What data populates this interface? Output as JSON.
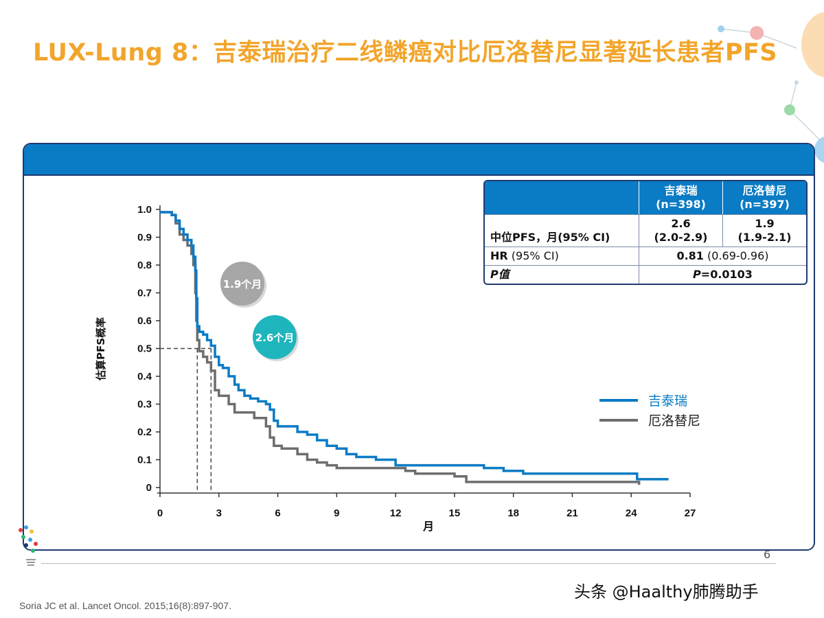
{
  "title": "LUX-Lung 8：吉泰瑞治疗二线鳞癌对比厄洛替尼显著延长患者PFS",
  "table": {
    "headers": [
      "",
      "吉泰瑞\n(n=398)",
      "厄洛替尼\n(n=397)"
    ],
    "rows": [
      {
        "label": "中位PFS，月(95% CI)",
        "col1": "2.6\n(2.0-2.9)",
        "col2": "1.9\n(1.9-2.1)"
      },
      {
        "label_bold": "HR",
        "label_rest": " (95% CI)",
        "merged_bold": "0.81",
        "merged_rest": " (0.69-0.96)"
      },
      {
        "label_italic": "P值",
        "merged_italic": "P",
        "merged_rest": "=0.0103"
      }
    ]
  },
  "chart_data": {
    "type": "line",
    "title": "",
    "xlabel": "月",
    "ylabel": "估算PFS概率",
    "xlim": [
      0,
      27
    ],
    "ylim": [
      0,
      1.0
    ],
    "xticks": [
      0,
      3,
      6,
      9,
      12,
      15,
      18,
      21,
      24,
      27
    ],
    "yticks": [
      "0",
      "0.1",
      "0.2",
      "0.3",
      "0.4",
      "0.5",
      "0.6",
      "0.7",
      "0.8",
      "0.9",
      "1.0"
    ],
    "legend_position": "right-middle",
    "median_line_y": 0.5,
    "series": [
      {
        "name": "吉泰瑞",
        "color": "#0a7bc5",
        "median": 2.6,
        "median_label": "2.6个月",
        "badge_color": "#1fb5bd",
        "points": [
          [
            0,
            0.99
          ],
          [
            0.4,
            0.99
          ],
          [
            0.6,
            0.98
          ],
          [
            0.8,
            0.96
          ],
          [
            1.0,
            0.93
          ],
          [
            1.2,
            0.91
          ],
          [
            1.4,
            0.89
          ],
          [
            1.6,
            0.87
          ],
          [
            1.7,
            0.83
          ],
          [
            1.8,
            0.78
          ],
          [
            1.85,
            0.68
          ],
          [
            1.9,
            0.58
          ],
          [
            2.0,
            0.56
          ],
          [
            2.2,
            0.55
          ],
          [
            2.4,
            0.53
          ],
          [
            2.6,
            0.51
          ],
          [
            2.8,
            0.47
          ],
          [
            3.0,
            0.44
          ],
          [
            3.2,
            0.43
          ],
          [
            3.5,
            0.4
          ],
          [
            3.8,
            0.37
          ],
          [
            4.0,
            0.35
          ],
          [
            4.3,
            0.33
          ],
          [
            4.6,
            0.32
          ],
          [
            5.0,
            0.31
          ],
          [
            5.4,
            0.3
          ],
          [
            5.6,
            0.28
          ],
          [
            5.8,
            0.24
          ],
          [
            6.0,
            0.22
          ],
          [
            6.5,
            0.22
          ],
          [
            7.0,
            0.2
          ],
          [
            7.5,
            0.19
          ],
          [
            8.0,
            0.17
          ],
          [
            8.5,
            0.15
          ],
          [
            9.0,
            0.14
          ],
          [
            9.5,
            0.12
          ],
          [
            10.0,
            0.11
          ],
          [
            11.0,
            0.1
          ],
          [
            12.0,
            0.08
          ],
          [
            13.0,
            0.08
          ],
          [
            15.0,
            0.08
          ],
          [
            16.5,
            0.07
          ],
          [
            17.5,
            0.06
          ],
          [
            18.5,
            0.05
          ],
          [
            20.0,
            0.05
          ],
          [
            22.0,
            0.05
          ],
          [
            24.2,
            0.05
          ],
          [
            24.3,
            0.03
          ],
          [
            25.0,
            0.03
          ],
          [
            25.9,
            0.03
          ]
        ]
      },
      {
        "name": "厄洛替尼",
        "color": "#6d6d6d",
        "median": 1.9,
        "median_label": "1.9个月",
        "badge_color": "#a6a6a6",
        "points": [
          [
            0,
            0.99
          ],
          [
            0.4,
            0.99
          ],
          [
            0.6,
            0.98
          ],
          [
            0.8,
            0.95
          ],
          [
            1.0,
            0.91
          ],
          [
            1.2,
            0.89
          ],
          [
            1.4,
            0.87
          ],
          [
            1.6,
            0.84
          ],
          [
            1.7,
            0.8
          ],
          [
            1.8,
            0.7
          ],
          [
            1.85,
            0.6
          ],
          [
            1.9,
            0.53
          ],
          [
            2.0,
            0.49
          ],
          [
            2.2,
            0.47
          ],
          [
            2.4,
            0.45
          ],
          [
            2.6,
            0.42
          ],
          [
            2.8,
            0.35
          ],
          [
            3.0,
            0.33
          ],
          [
            3.3,
            0.33
          ],
          [
            3.5,
            0.3
          ],
          [
            3.8,
            0.27
          ],
          [
            4.3,
            0.27
          ],
          [
            4.8,
            0.25
          ],
          [
            5.2,
            0.25
          ],
          [
            5.4,
            0.22
          ],
          [
            5.6,
            0.18
          ],
          [
            5.8,
            0.15
          ],
          [
            6.2,
            0.14
          ],
          [
            7.0,
            0.12
          ],
          [
            7.5,
            0.1
          ],
          [
            8.0,
            0.09
          ],
          [
            8.5,
            0.08
          ],
          [
            9.0,
            0.07
          ],
          [
            10.0,
            0.07
          ],
          [
            12.0,
            0.07
          ],
          [
            12.5,
            0.06
          ],
          [
            13.0,
            0.05
          ],
          [
            14.0,
            0.05
          ],
          [
            15.0,
            0.04
          ],
          [
            15.6,
            0.02
          ],
          [
            18.0,
            0.02
          ],
          [
            20.0,
            0.02
          ],
          [
            22.0,
            0.02
          ],
          [
            24.3,
            0.02
          ],
          [
            24.4,
            0.01
          ]
        ]
      }
    ]
  },
  "page_number": "6",
  "citation": "Soria JC et al. Lancet Oncol. 2015;16(8):897-907.",
  "watermark": "头条 @Haalthy肺腾助手",
  "colors": {
    "title": "#f2a52b",
    "panel_header": "#0a7bc5",
    "panel_border": "#1f3a70"
  }
}
